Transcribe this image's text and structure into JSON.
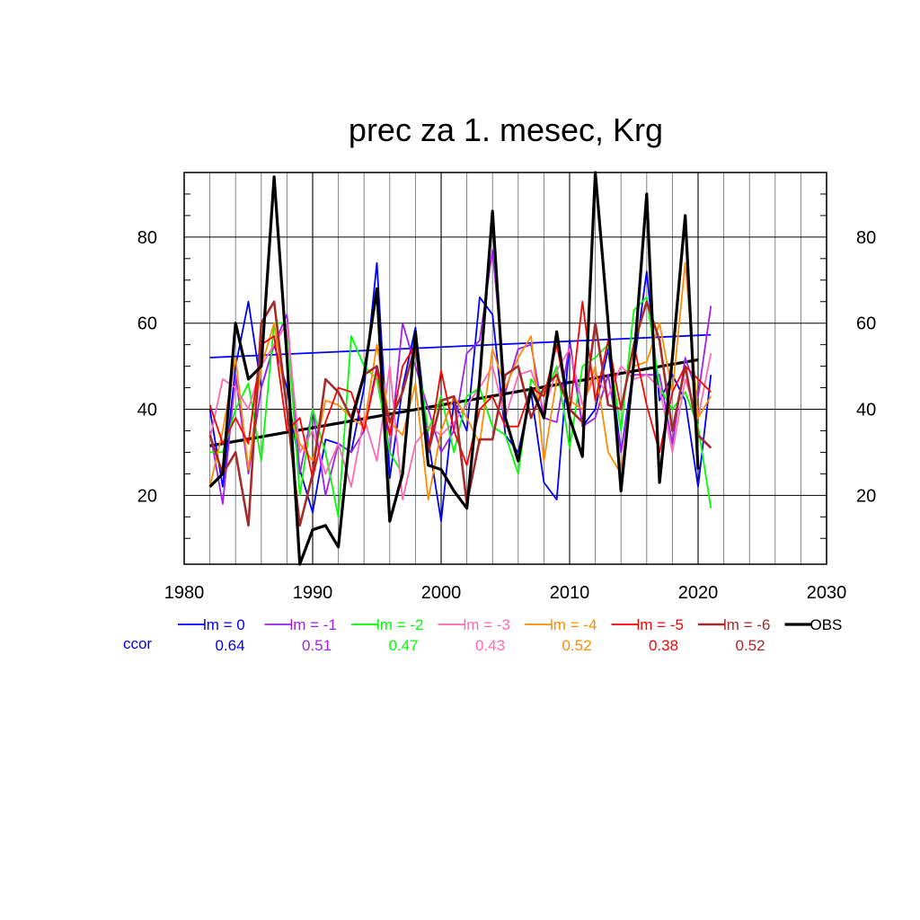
{
  "chart_data": {
    "type": "line",
    "title": "prec za 1. mesec, Krg",
    "xlim": [
      1980,
      2030
    ],
    "ylim": [
      4,
      95
    ],
    "x_ticks": [
      1980,
      1990,
      2000,
      2010,
      2020,
      2030
    ],
    "y_ticks": [
      20,
      40,
      60,
      80
    ],
    "grid": true,
    "legend_position": "bottom",
    "ccor_label": "ccor",
    "x": [
      1982,
      1983,
      1984,
      1985,
      1986,
      1987,
      1988,
      1989,
      1990,
      1991,
      1992,
      1993,
      1994,
      1995,
      1996,
      1997,
      1998,
      1999,
      2000,
      2001,
      2002,
      2003,
      2004,
      2005,
      2006,
      2007,
      2008,
      2009,
      2010,
      2011,
      2012,
      2013,
      2014,
      2015,
      2016,
      2017,
      2018,
      2019,
      2020,
      2021
    ],
    "series": [
      {
        "name": "lm = 0",
        "color": "#0000ff",
        "ccor": "0.64",
        "width": 1.8,
        "values": [
          40,
          22,
          50,
          65,
          45,
          55,
          45,
          26,
          16,
          33,
          32,
          30,
          45,
          74,
          24,
          45,
          59,
          33,
          14,
          42,
          35,
          66,
          62,
          34,
          30,
          44,
          23,
          19,
          56,
          36,
          40,
          54,
          30,
          50,
          72,
          42,
          48,
          42,
          22,
          48
        ],
        "trend": [
          52,
          57.3
        ]
      },
      {
        "name": "lm = -1",
        "color": "#a020f0",
        "ccor": "0.51",
        "width": 1.8,
        "values": [
          35,
          18,
          48,
          25,
          45,
          55,
          62,
          25,
          40,
          20,
          32,
          30,
          35,
          50,
          30,
          60,
          50,
          40,
          30,
          35,
          53,
          56,
          77,
          44,
          54,
          55,
          38,
          37,
          55,
          36,
          38,
          48,
          30,
          48,
          48,
          48,
          32,
          52,
          43,
          64
        ]
      },
      {
        "name": "lm = -2",
        "color": "#00ff00",
        "ccor": "0.47",
        "width": 1.8,
        "values": [
          30,
          30,
          40,
          46,
          28,
          60,
          60,
          20,
          40,
          30,
          15,
          57,
          50,
          47,
          30,
          25,
          55,
          35,
          43,
          30,
          43,
          45,
          36,
          34,
          25,
          47,
          43,
          50,
          31,
          50,
          52,
          55,
          35,
          63,
          66,
          45,
          40,
          44,
          36,
          17
        ]
      },
      {
        "name": "lm = -3",
        "color": "#ff69b4",
        "ccor": "0.43",
        "width": 1.8,
        "values": [
          33,
          47,
          45,
          40,
          50,
          55,
          60,
          30,
          35,
          25,
          32,
          22,
          38,
          28,
          50,
          19,
          32,
          36,
          34,
          37,
          41,
          45,
          50,
          38,
          48,
          49,
          40,
          49,
          54,
          41,
          48,
          43,
          50,
          47,
          48,
          45,
          30,
          47,
          38,
          53
        ]
      },
      {
        "name": "lm = -4",
        "color": "#ff8c00",
        "ccor": "0.52",
        "width": 1.8,
        "values": [
          22,
          35,
          52,
          26,
          50,
          60,
          40,
          32,
          28,
          42,
          41,
          38,
          36,
          55,
          37,
          34,
          46,
          19,
          35,
          43,
          38,
          32,
          54,
          45,
          52,
          57,
          28,
          47,
          42,
          40,
          50,
          30,
          25,
          50,
          51,
          60,
          44,
          74,
          38,
          43
        ]
      },
      {
        "name": "lm = -5",
        "color": "#ff0000",
        "ccor": "0.38",
        "width": 1.8,
        "values": [
          41,
          32,
          38,
          32,
          55,
          57,
          35,
          38,
          24,
          37,
          45,
          44,
          35,
          49,
          34,
          50,
          55,
          30,
          49,
          35,
          27,
          40,
          43,
          36,
          36,
          45,
          43,
          55,
          39,
          65,
          42,
          56,
          40,
          55,
          41,
          30,
          44,
          50,
          47,
          44
        ]
      },
      {
        "name": "lm = -6",
        "color": "#a52a2a",
        "ccor": "0.52",
        "width": 2.6,
        "values": [
          34,
          25,
          30,
          13,
          60,
          65,
          40,
          13,
          25,
          47,
          44,
          38,
          48,
          50,
          37,
          44,
          55,
          30,
          42,
          43,
          18,
          33,
          33,
          48,
          50,
          38,
          45,
          48,
          40,
          37,
          60,
          41,
          40,
          55,
          65,
          56,
          35,
          50,
          34,
          31
        ]
      },
      {
        "name": "OBS",
        "color": "#000000",
        "ccor": "",
        "width": 3.2,
        "values": [
          22,
          25,
          60,
          47,
          50,
          94,
          52,
          4,
          12,
          13,
          8,
          37,
          48,
          68,
          14,
          25,
          58,
          27,
          26,
          21,
          17,
          47,
          86,
          38,
          28,
          45,
          38,
          58,
          38,
          29,
          95,
          60,
          21,
          51,
          90,
          23,
          52,
          85,
          26,
          null
        ],
        "trend": [
          31.5,
          51.5
        ]
      }
    ]
  }
}
